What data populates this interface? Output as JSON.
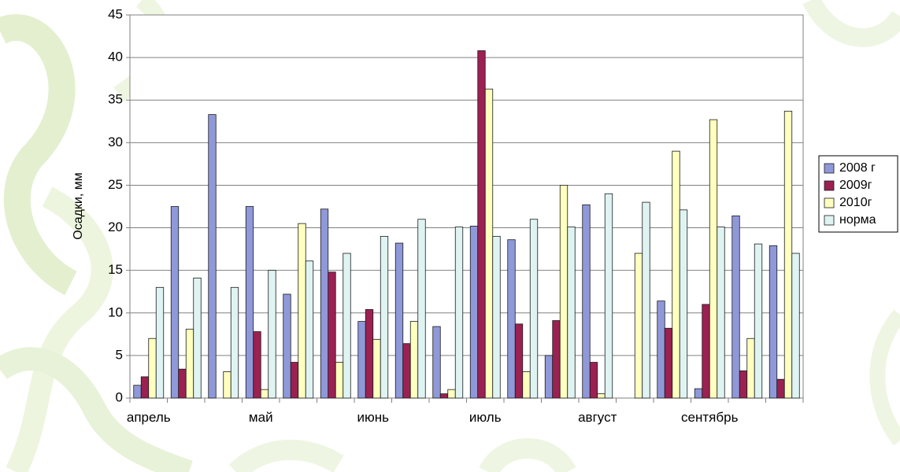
{
  "chart_data": {
    "type": "bar",
    "ylabel": "Осадки, мм",
    "ylim": [
      0,
      45
    ],
    "yticks": [
      0,
      5,
      10,
      15,
      20,
      25,
      30,
      35,
      40,
      45
    ],
    "grid": true,
    "legend_position": "right",
    "month_labels": [
      "апрель",
      "май",
      "июнь",
      "июль",
      "август",
      "сентябрь"
    ],
    "groups_per_month": 3,
    "series": [
      {
        "name": "2008 г",
        "color": "#8f99d9",
        "values": [
          1.5,
          22.5,
          33.3,
          22.5,
          12.2,
          22.2,
          9.0,
          18.2,
          8.4,
          20.2,
          18.6,
          5.0,
          22.7,
          0,
          11.4,
          1.1,
          21.4,
          17.9
        ]
      },
      {
        "name": "2009г",
        "color": "#9b2152",
        "values": [
          2.5,
          3.4,
          0,
          7.8,
          4.2,
          14.8,
          10.4,
          6.4,
          0.5,
          40.8,
          8.7,
          9.1,
          4.2,
          0,
          8.2,
          11.0,
          3.2,
          2.2
        ]
      },
      {
        "name": "2010г",
        "color": "#ffffbf",
        "values": [
          7.0,
          8.1,
          3.1,
          1.0,
          20.5,
          4.2,
          6.9,
          9.0,
          1.0,
          36.3,
          3.1,
          25.0,
          0.5,
          17.0,
          29.0,
          32.7,
          7.0,
          33.7
        ]
      },
      {
        "name": "норма",
        "color": "#dff4f2",
        "values": [
          13.0,
          14.1,
          13.0,
          15.0,
          16.1,
          17.0,
          19.0,
          21.0,
          20.1,
          19.0,
          21.0,
          20.1,
          24.0,
          23.0,
          22.1,
          20.1,
          18.1,
          17.0
        ]
      }
    ]
  }
}
